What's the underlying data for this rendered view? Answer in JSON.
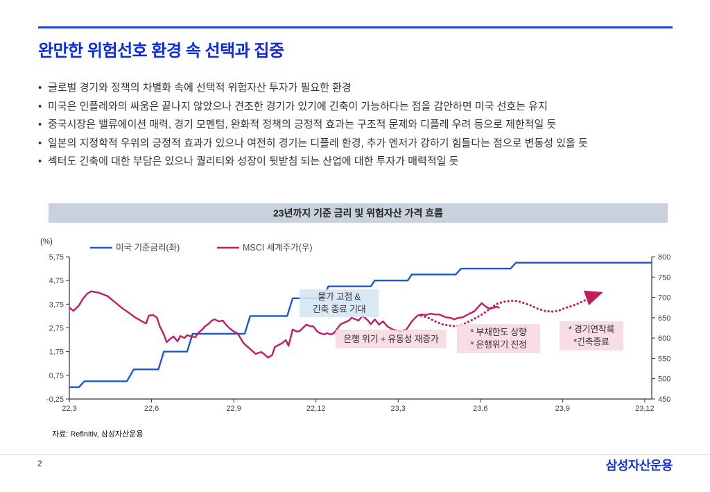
{
  "header": {
    "title": "완만한 위험선호 환경 속 선택과 집중"
  },
  "bullets": {
    "marker": "•",
    "items": [
      "글로벌 경기와 정책의 차별화 속에 선택적 위험자산 투자가 필요한 환경",
      "미국은 인플레와의 싸움은 끝나지 않았으나 견조한 경기가 있기에 긴축이 가능하다는 점을 감안하면 미국 선호는 유지",
      "중국시장은 밸류에이션 매력, 경기 모멘텀, 완화적 정책의 긍정적 효과는 구조적 문제와 디플레 우려 등으로 제한적일 듯",
      "일본의 지정학적 우위의 긍정적 효과가 있으나 여전히 경기는 디플레 환경, 추가 엔저가 강하기 힘들다는 점으로 변동성 있을 듯",
      "섹터도 긴축에 대한 부담은 있으나 퀄리티와 성장이 뒷받침 되는 산업에 대한 투자가 매력적일 듯"
    ]
  },
  "chart_data": {
    "type": "line",
    "title": "23년까지 기준 금리 및 위험자산 가격 흐름",
    "unit_left": "(%)",
    "colors": {
      "fed_line": "#1a56d6",
      "msci_line": "#c41a5e",
      "axis": "#333333"
    },
    "x_axis": {
      "tick_labels": [
        "22,3",
        "22,6",
        "22,9",
        "22,12",
        "23,3",
        "23,6",
        "23,9",
        "23,12"
      ],
      "tick_months": [
        0,
        3,
        6,
        9,
        12,
        15,
        18,
        21
      ]
    },
    "left_axis": {
      "min": -0.25,
      "max": 5.75,
      "tick_labels": [
        "5,75",
        "4,75",
        "3,75",
        "2,75",
        "1,75",
        "0,75",
        "-0,25"
      ],
      "tick_values": [
        5.75,
        4.75,
        3.75,
        2.75,
        1.75,
        0.75,
        -0.25
      ]
    },
    "right_axis": {
      "min": 450,
      "max": 800,
      "tick_labels": [
        "800",
        "750",
        "700",
        "650",
        "600",
        "550",
        "500",
        "450"
      ],
      "tick_values": [
        800,
        750,
        700,
        650,
        600,
        550,
        500,
        450
      ]
    },
    "series": [
      {
        "name": "미국 기준금리(좌)",
        "axis": "left",
        "style": "solid",
        "color": "#1a56d6",
        "points": [
          [
            0,
            0.25
          ],
          [
            0.35,
            0.25
          ],
          [
            0.55,
            0.5
          ],
          [
            2.1,
            0.5
          ],
          [
            2.35,
            1.0
          ],
          [
            3.25,
            1.0
          ],
          [
            3.45,
            1.75
          ],
          [
            4.3,
            1.75
          ],
          [
            4.5,
            2.5
          ],
          [
            6.4,
            2.5
          ],
          [
            6.6,
            3.25
          ],
          [
            7.95,
            3.25
          ],
          [
            8.15,
            4.0
          ],
          [
            9.25,
            4.0
          ],
          [
            9.45,
            4.5
          ],
          [
            11.0,
            4.5
          ],
          [
            11.15,
            4.75
          ],
          [
            12.35,
            4.75
          ],
          [
            12.5,
            5.0
          ],
          [
            14.1,
            5.0
          ],
          [
            14.3,
            5.25
          ],
          [
            16.1,
            5.25
          ],
          [
            16.3,
            5.5
          ],
          [
            21.25,
            5.5
          ]
        ]
      },
      {
        "name": "MSCI 세계주가(우)",
        "axis": "right",
        "style": "solid",
        "color": "#c41a5e",
        "points": [
          [
            0,
            675
          ],
          [
            0.15,
            667
          ],
          [
            0.35,
            680
          ],
          [
            0.5,
            697
          ],
          [
            0.65,
            709
          ],
          [
            0.8,
            715
          ],
          [
            1.1,
            711
          ],
          [
            1.4,
            703
          ],
          [
            1.65,
            689
          ],
          [
            1.9,
            675
          ],
          [
            2.15,
            663
          ],
          [
            2.4,
            651
          ],
          [
            2.65,
            641
          ],
          [
            2.8,
            636
          ],
          [
            2.9,
            655
          ],
          [
            3.05,
            657
          ],
          [
            3.2,
            650
          ],
          [
            3.3,
            629
          ],
          [
            3.45,
            609
          ],
          [
            3.55,
            590
          ],
          [
            3.7,
            599
          ],
          [
            3.8,
            604
          ],
          [
            3.95,
            592
          ],
          [
            4.05,
            605
          ],
          [
            4.2,
            600
          ],
          [
            4.3,
            607
          ],
          [
            4.45,
            604
          ],
          [
            4.6,
            602
          ],
          [
            4.7,
            612
          ],
          [
            4.85,
            621
          ],
          [
            4.95,
            629
          ],
          [
            5.1,
            636
          ],
          [
            5.2,
            643
          ],
          [
            5.3,
            646
          ],
          [
            5.45,
            641
          ],
          [
            5.6,
            643
          ],
          [
            5.7,
            634
          ],
          [
            5.85,
            624
          ],
          [
            6.0,
            616
          ],
          [
            6.15,
            611
          ],
          [
            6.35,
            588
          ],
          [
            6.6,
            573
          ],
          [
            6.8,
            561
          ],
          [
            7.0,
            566
          ],
          [
            7.1,
            561
          ],
          [
            7.25,
            552
          ],
          [
            7.4,
            558
          ],
          [
            7.5,
            578
          ],
          [
            7.75,
            587
          ],
          [
            7.9,
            595
          ],
          [
            8.0,
            581
          ],
          [
            8.15,
            621
          ],
          [
            8.3,
            616
          ],
          [
            8.4,
            617
          ],
          [
            8.65,
            633
          ],
          [
            8.8,
            629
          ],
          [
            8.9,
            629
          ],
          [
            9.05,
            616
          ],
          [
            9.15,
            612
          ],
          [
            9.3,
            609
          ],
          [
            9.4,
            612
          ],
          [
            9.55,
            609
          ],
          [
            9.65,
            612
          ],
          [
            9.9,
            634
          ],
          [
            10.2,
            643
          ],
          [
            10.3,
            650
          ],
          [
            10.45,
            646
          ],
          [
            10.55,
            643
          ],
          [
            10.7,
            655
          ],
          [
            10.9,
            643
          ],
          [
            11.0,
            634
          ],
          [
            11.15,
            646
          ],
          [
            11.3,
            633
          ],
          [
            11.45,
            641
          ],
          [
            11.6,
            629
          ],
          [
            11.8,
            621
          ],
          [
            12.1,
            617
          ],
          [
            12.3,
            621
          ],
          [
            12.5,
            641
          ],
          [
            12.7,
            655
          ],
          [
            12.85,
            658
          ],
          [
            13.0,
            657
          ],
          [
            13.2,
            660
          ],
          [
            13.35,
            658
          ],
          [
            13.5,
            658
          ],
          [
            13.75,
            651
          ],
          [
            13.9,
            650
          ],
          [
            14.05,
            646
          ],
          [
            14.2,
            650
          ],
          [
            14.35,
            651
          ],
          [
            14.6,
            660
          ],
          [
            14.7,
            663
          ],
          [
            14.8,
            667
          ],
          [
            14.9,
            675
          ],
          [
            15.05,
            686
          ],
          [
            15.2,
            677
          ],
          [
            15.35,
            672
          ],
          [
            15.5,
            675
          ],
          [
            15.6,
            677
          ],
          [
            15.7,
            674
          ]
        ]
      },
      {
        "name": "MSCI 세계주가 전망(점선)",
        "axis": "right",
        "style": "dotted",
        "arrow": true,
        "color": "#c41a5e",
        "points": [
          [
            12.85,
            655
          ],
          [
            13.1,
            650
          ],
          [
            13.35,
            641
          ],
          [
            13.6,
            634
          ],
          [
            13.85,
            631
          ],
          [
            14.1,
            629
          ],
          [
            14.35,
            633
          ],
          [
            14.6,
            641
          ],
          [
            14.85,
            650
          ],
          [
            15.1,
            660
          ],
          [
            15.35,
            672
          ],
          [
            15.6,
            684
          ],
          [
            15.85,
            689
          ],
          [
            16.1,
            692
          ],
          [
            16.35,
            691
          ],
          [
            16.6,
            686
          ],
          [
            16.85,
            680
          ],
          [
            17.1,
            672
          ],
          [
            17.35,
            667
          ],
          [
            17.6,
            665
          ],
          [
            17.85,
            667
          ],
          [
            18.1,
            674
          ],
          [
            18.35,
            679
          ],
          [
            18.6,
            686
          ],
          [
            18.85,
            694
          ],
          [
            19.1,
            704
          ],
          [
            19.4,
            711
          ]
        ]
      }
    ],
    "annotations": {
      "peak": {
        "line1": "물가 고점 &",
        "line2": "긴축 종료 기대"
      },
      "bank": {
        "line1": "은행 위기 + 유동성 재증가"
      },
      "debt": {
        "line1": "* 부채한도 상향",
        "line2": "* 은행위기 진정"
      },
      "soft": {
        "line1": "* 경기연착륙",
        "line2": "*긴축종료"
      }
    }
  },
  "source": {
    "text": "자료: Refinitiv,  삼성자산운용"
  },
  "footer": {
    "page_number": "2",
    "brand": "삼성자산운용"
  }
}
